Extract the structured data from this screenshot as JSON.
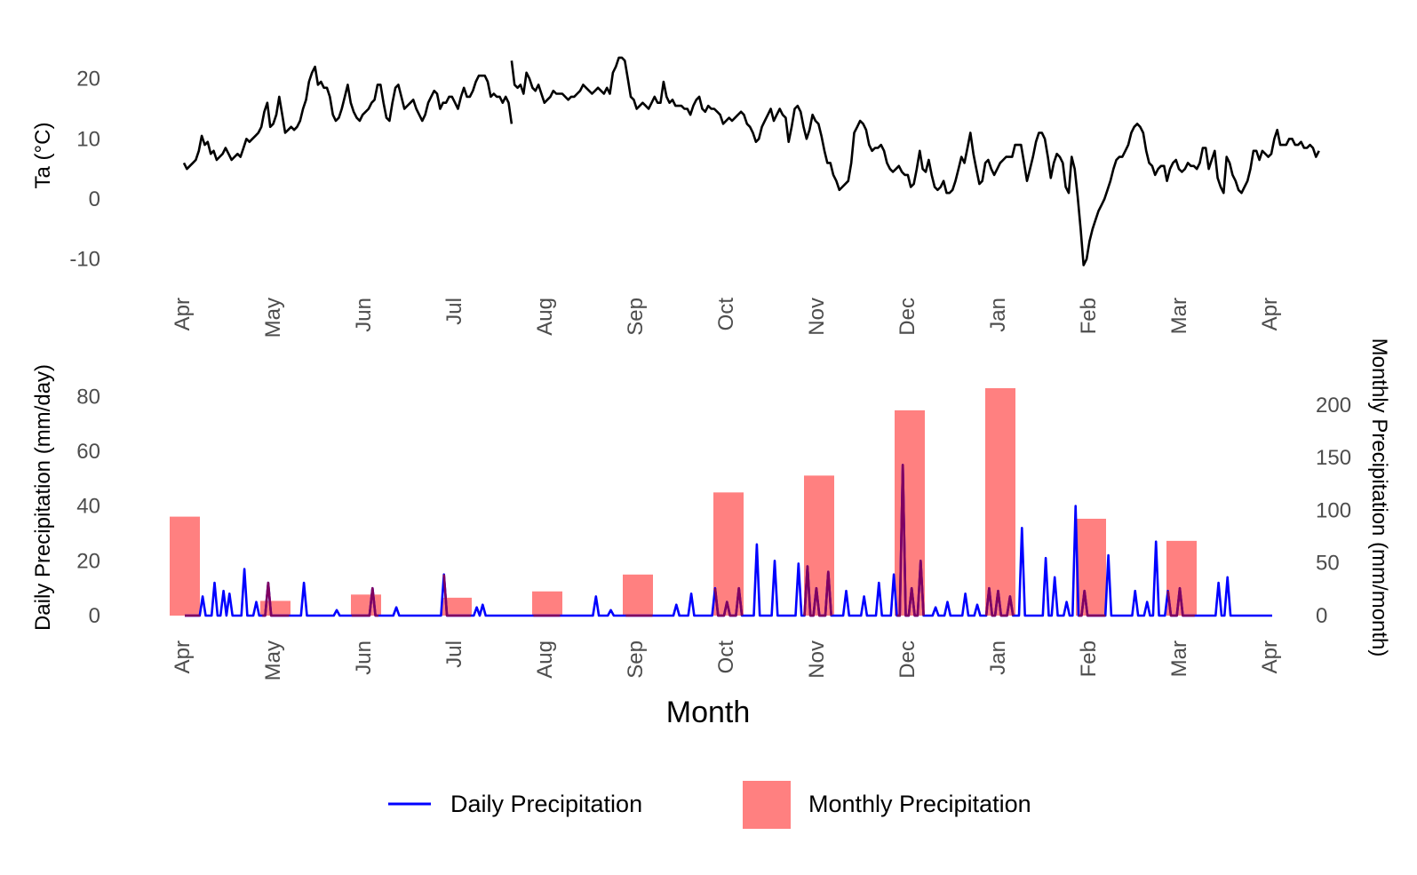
{
  "chart_data": [
    {
      "type": "line",
      "ylabel": "Ta (°C)",
      "xlabel": "",
      "ylim": [
        -13,
        26
      ],
      "yticks": [
        -10,
        0,
        10,
        20
      ],
      "xticks": [
        "Apr",
        "May",
        "Jun",
        "Jul",
        "Aug",
        "Sep",
        "Oct",
        "Nov",
        "Dec",
        "Jan",
        "Feb",
        "Mar",
        "Apr"
      ],
      "grid": false,
      "series": [
        {
          "color": "#000000",
          "segments": [
            {
              "day_start": 0,
              "values": [
                6,
                5,
                5.5,
                6,
                6.5,
                8,
                10.5,
                9,
                9.5,
                7.5,
                8,
                6.5,
                7,
                7.5,
                8.5,
                7.5,
                6.5,
                7,
                7.5,
                7,
                8.5,
                10,
                9.5,
                10,
                10.5,
                11,
                12,
                14.5,
                16,
                12,
                12.5,
                14,
                17,
                14,
                11,
                11.5,
                12,
                11.5,
                12,
                13,
                15,
                16.5,
                19.5,
                21,
                22,
                19,
                19.5,
                18.5,
                18.5,
                17,
                14,
                13,
                13.5,
                15,
                17,
                19,
                16,
                14.5,
                13.5,
                13,
                14,
                14.5,
                15,
                16,
                16.5,
                19,
                19,
                16,
                13.5,
                13,
                16,
                18.5,
                19,
                17,
                15,
                15.5,
                16,
                16.5,
                15,
                14,
                13,
                14,
                16,
                17,
                18,
                17.5,
                15,
                16,
                16,
                17,
                17,
                16,
                15,
                17,
                18.5,
                17,
                17,
                18,
                19.5,
                20.5,
                20.5,
                20.5,
                19.5,
                17,
                17.5,
                17,
                17,
                16,
                17,
                16,
                12.5
              ]
            },
            {
              "day_start": 110,
              "values": [
                23,
                19,
                18.5,
                19,
                17.5,
                21,
                20,
                18.5,
                18,
                19,
                17.5,
                16,
                16.5,
                17,
                18,
                17.5,
                17.5,
                17.5,
                17,
                16.5,
                17,
                17,
                17.5,
                18,
                19,
                18.5,
                18,
                17.5,
                18,
                18.5,
                18,
                17.5,
                18.5,
                17.5,
                21,
                22,
                23.5,
                23.5,
                23,
                20,
                17,
                16.5,
                15,
                15.5,
                16,
                15.5,
                15,
                16,
                17,
                16,
                16,
                19.5,
                17,
                16,
                16.5,
                15.5,
                15.5,
                15.5,
                15,
                15,
                14,
                15.5,
                16.5,
                17,
                15,
                14.5,
                15.5,
                15,
                15,
                14.5,
                14,
                12.5,
                13,
                13.5,
                13,
                13.5,
                14,
                14.5,
                14,
                12.5,
                12,
                11,
                9.5,
                10,
                12,
                13,
                14,
                15,
                13,
                14,
                15,
                14,
                13.5,
                9.5,
                12,
                15,
                15.5,
                14.5,
                12,
                10,
                11.5,
                14,
                13,
                12.5,
                10.5,
                8,
                6,
                6,
                4,
                3,
                1.5,
                2,
                2.5,
                3,
                6,
                11,
                12,
                13,
                12.5,
                11.5,
                9,
                8,
                8.5,
                8.5,
                9,
                8,
                6,
                5,
                4.5,
                5,
                5.5,
                4.5,
                4,
                4,
                2,
                2.5,
                5,
                8,
                5,
                4.5,
                6.5,
                4,
                2,
                1.5,
                2,
                3,
                1,
                1,
                1.5,
                3,
                5,
                7,
                6,
                8.5,
                11,
                7.5,
                5,
                2.5,
                3,
                6,
                6.5,
                5,
                4,
                5,
                6,
                6.5,
                7,
                7,
                7,
                9,
                9,
                9,
                6,
                3,
                5,
                7,
                9.5,
                11,
                11,
                10,
                7,
                3.5,
                6,
                7.5,
                7,
                6,
                2,
                1,
                7,
                5,
                0.5,
                -5,
                -11,
                -10,
                -7,
                -5,
                -3.5,
                -2,
                -1,
                0,
                1.5,
                3,
                5,
                6.5,
                7,
                7,
                8,
                9,
                11,
                12,
                12.5,
                12,
                11,
                8,
                6,
                5.5,
                4,
                5,
                5.5,
                5.5,
                3,
                5,
                6,
                6.5,
                5,
                4.5,
                5,
                6,
                5.5,
                5.5,
                5,
                6,
                8.5,
                8.5,
                5,
                6.5,
                8,
                3.5,
                2,
                1,
                7,
                6,
                4,
                3,
                1.5,
                1,
                2,
                3,
                5,
                8,
                8,
                6.5,
                8,
                7.5,
                7,
                7.5,
                10,
                11.5,
                9,
                9,
                9,
                10,
                10,
                9,
                9,
                9.5,
                8.5,
                8.5,
                9,
                8.5,
                7,
                8
              ]
            }
          ]
        }
      ]
    },
    {
      "type": "bar+line",
      "xlabel": "Month",
      "ylabel": "Daily Precipitation (mm/day)",
      "ylabel_right": "Monthly Precipitation (mm/month)",
      "ylim": [
        0,
        83
      ],
      "ylim_right": [
        0,
        216
      ],
      "yticks": [
        0,
        20,
        40,
        60,
        80
      ],
      "yticks_right": [
        0,
        50,
        100,
        150,
        200
      ],
      "xticks": [
        "Apr",
        "May",
        "Jun",
        "Jul",
        "Aug",
        "Sep",
        "Oct",
        "Nov",
        "Dec",
        "Jan",
        "Feb",
        "Mar",
        "Apr"
      ],
      "grid": false,
      "legend_position": "bottom",
      "legend": [
        {
          "label": "Daily Precipitation",
          "kind": "line",
          "color": "#0000ff"
        },
        {
          "label": "Monthly Precipitation",
          "kind": "bar",
          "color": "#ff8080"
        }
      ],
      "bar_series": {
        "name": "Monthly Precipitation",
        "axis": "right",
        "color": "#ff8080",
        "categories": [
          "Apr",
          "May",
          "Jun",
          "Jul",
          "Aug",
          "Sep",
          "Oct",
          "Nov",
          "Dec",
          "Jan",
          "Feb",
          "Mar"
        ],
        "values": [
          94,
          14,
          20,
          17,
          23,
          39,
          117,
          133,
          195,
          216,
          92,
          71
        ]
      },
      "line_series": {
        "name": "Daily Precipitation",
        "axis": "left",
        "color": "#0000ff",
        "baseline": 0,
        "peaks": [
          {
            "day": 6,
            "value": 7
          },
          {
            "day": 10,
            "value": 12
          },
          {
            "day": 13,
            "value": 9
          },
          {
            "day": 15,
            "value": 8
          },
          {
            "day": 20,
            "value": 17
          },
          {
            "day": 24,
            "value": 5
          },
          {
            "day": 28,
            "value": 12
          },
          {
            "day": 40,
            "value": 12
          },
          {
            "day": 51,
            "value": 2
          },
          {
            "day": 63,
            "value": 10
          },
          {
            "day": 71,
            "value": 3
          },
          {
            "day": 87,
            "value": 15
          },
          {
            "day": 98,
            "value": 3
          },
          {
            "day": 100,
            "value": 4
          },
          {
            "day": 138,
            "value": 7
          },
          {
            "day": 143,
            "value": 2
          },
          {
            "day": 165,
            "value": 4
          },
          {
            "day": 170,
            "value": 8
          },
          {
            "day": 178,
            "value": 10
          },
          {
            "day": 182,
            "value": 5
          },
          {
            "day": 186,
            "value": 10
          },
          {
            "day": 192,
            "value": 26
          },
          {
            "day": 198,
            "value": 20
          },
          {
            "day": 206,
            "value": 19
          },
          {
            "day": 209,
            "value": 18
          },
          {
            "day": 212,
            "value": 10
          },
          {
            "day": 216,
            "value": 16
          },
          {
            "day": 222,
            "value": 9
          },
          {
            "day": 228,
            "value": 7
          },
          {
            "day": 233,
            "value": 12
          },
          {
            "day": 238,
            "value": 15
          },
          {
            "day": 241,
            "value": 55
          },
          {
            "day": 244,
            "value": 10
          },
          {
            "day": 247,
            "value": 20
          },
          {
            "day": 252,
            "value": 3
          },
          {
            "day": 256,
            "value": 5
          },
          {
            "day": 262,
            "value": 8
          },
          {
            "day": 266,
            "value": 4
          },
          {
            "day": 270,
            "value": 10
          },
          {
            "day": 273,
            "value": 9
          },
          {
            "day": 277,
            "value": 7
          },
          {
            "day": 281,
            "value": 32
          },
          {
            "day": 289,
            "value": 21
          },
          {
            "day": 292,
            "value": 14
          },
          {
            "day": 296,
            "value": 5
          },
          {
            "day": 299,
            "value": 40
          },
          {
            "day": 302,
            "value": 9
          },
          {
            "day": 310,
            "value": 22
          },
          {
            "day": 319,
            "value": 9
          },
          {
            "day": 323,
            "value": 5
          },
          {
            "day": 326,
            "value": 27
          },
          {
            "day": 330,
            "value": 9
          },
          {
            "day": 334,
            "value": 10
          },
          {
            "day": 347,
            "value": 12
          },
          {
            "day": 350,
            "value": 14
          }
        ]
      },
      "overlap_color": "#800060"
    }
  ]
}
